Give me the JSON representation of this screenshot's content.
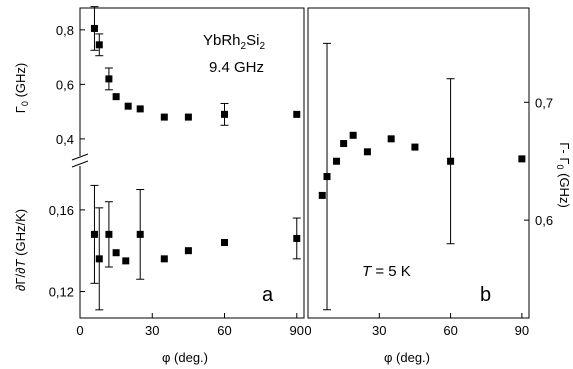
{
  "chart_data": [
    {
      "type": "scatter",
      "panel_label": "a",
      "title": "YbRh2Si2",
      "subtitle": "9.4 GHz",
      "xlabel": "φ (deg.)",
      "xlim": [
        0,
        93
      ],
      "xticks": [
        0,
        30,
        60,
        90
      ],
      "subplots": [
        {
          "ylabel": "Γ0 (GHz)",
          "ylim": [
            0.33,
            0.88
          ],
          "yticks": [
            0.4,
            0.6,
            0.8
          ],
          "series": [
            {
              "x": [
                6,
                8,
                12,
                15,
                20,
                25,
                35,
                45,
                60,
                90
              ],
              "y": [
                0.805,
                0.745,
                0.62,
                0.555,
                0.52,
                0.51,
                0.48,
                0.48,
                0.49,
                0.49
              ],
              "yerr": [
                0.08,
                0.04,
                0.04,
                0,
                0,
                0,
                0,
                0,
                0.04,
                0
              ]
            }
          ]
        },
        {
          "ylabel": "∂Γ/∂T (GHz/K)",
          "ylim": [
            0.107,
            0.182
          ],
          "yticks": [
            0.12,
            0.16
          ],
          "series": [
            {
              "x": [
                6,
                8,
                12,
                15,
                19,
                25,
                35,
                45,
                60,
                90
              ],
              "y": [
                0.148,
                0.136,
                0.148,
                0.139,
                0.135,
                0.148,
                0.136,
                0.14,
                0.144,
                0.146
              ],
              "yerr": [
                0.024,
                0.025,
                0.016,
                0,
                0,
                0.022,
                0,
                0,
                0,
                0.01
              ]
            }
          ]
        }
      ]
    },
    {
      "type": "scatter",
      "panel_label": "b",
      "annotation": "T = 5 K",
      "xlabel": "φ (deg.)",
      "xlim": [
        0,
        93
      ],
      "xticks": [
        0,
        30,
        60,
        90
      ],
      "ylabel": "Γ- Γ0 (GHz)",
      "ylim": [
        0.517,
        0.78
      ],
      "yticks": [
        0.6,
        0.7
      ],
      "series": [
        {
          "x": [
            6,
            8,
            12,
            15,
            19,
            25,
            35,
            45,
            60,
            90
          ],
          "y": [
            0.621,
            0.637,
            0.65,
            0.665,
            0.672,
            0.658,
            0.669,
            0.662,
            0.65,
            0.652
          ],
          "yerr": [
            0,
            0.113,
            0,
            0,
            0,
            0,
            0,
            0,
            0.07,
            0
          ]
        }
      ]
    }
  ]
}
